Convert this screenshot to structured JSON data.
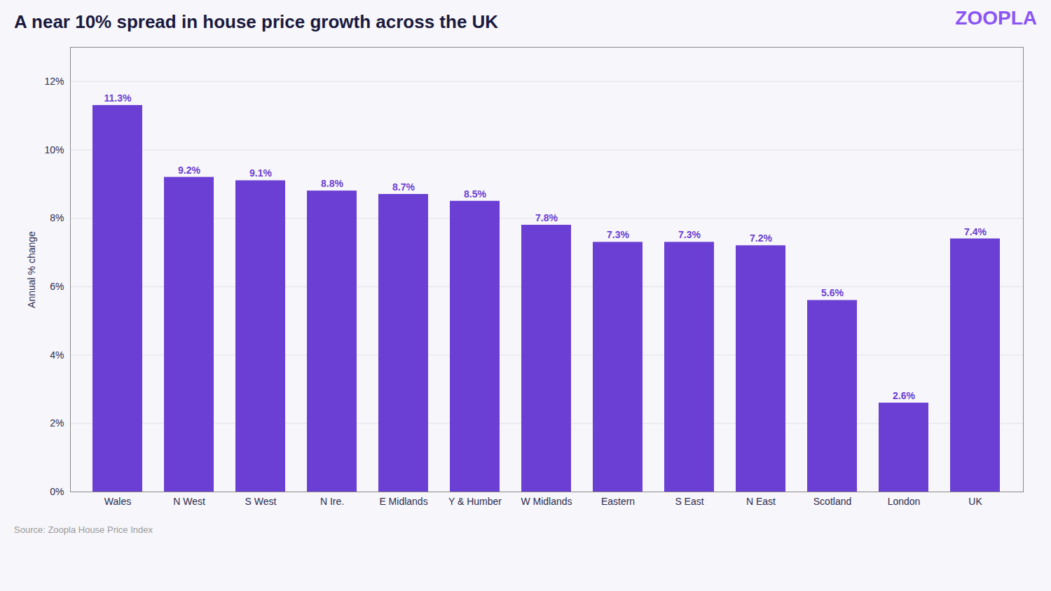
{
  "chart_data": {
    "type": "bar",
    "title": "A near 10% spread in house price growth across the UK",
    "annotations": [
      "ZOOPLA"
    ],
    "caption": "Source: Zoopla House Price Index",
    "ylabel": "Annual % change",
    "categories": [
      "Wales",
      "N West",
      "S West",
      "N Ire.",
      "E Midlands",
      "Y & Humber",
      "W Midlands",
      "Eastern",
      "S East",
      "N East",
      "Scotland",
      "London",
      "UK"
    ],
    "values": [
      11.3,
      9.2,
      9.1,
      8.8,
      8.7,
      8.5,
      7.8,
      7.3,
      7.3,
      7.2,
      5.6,
      2.6,
      7.4
    ],
    "value_labels": [
      "11.3%",
      "9.2%",
      "9.1%",
      "8.8%",
      "8.7%",
      "8.5%",
      "7.8%",
      "7.3%",
      "7.3%",
      "7.2%",
      "5.6%",
      "2.6%",
      "7.4%"
    ],
    "data_labels": true,
    "color": "#6B3FD4",
    "ylim": [
      0,
      13
    ],
    "yticks": [
      {
        "value": 0,
        "label": "0%"
      },
      {
        "value": 2,
        "label": "2%"
      },
      {
        "value": 4,
        "label": "4%"
      },
      {
        "value": 6,
        "label": "6%"
      },
      {
        "value": 8,
        "label": "8%"
      },
      {
        "value": 10,
        "label": "10%"
      },
      {
        "value": 12,
        "label": "12%"
      }
    ],
    "grid": true
  }
}
